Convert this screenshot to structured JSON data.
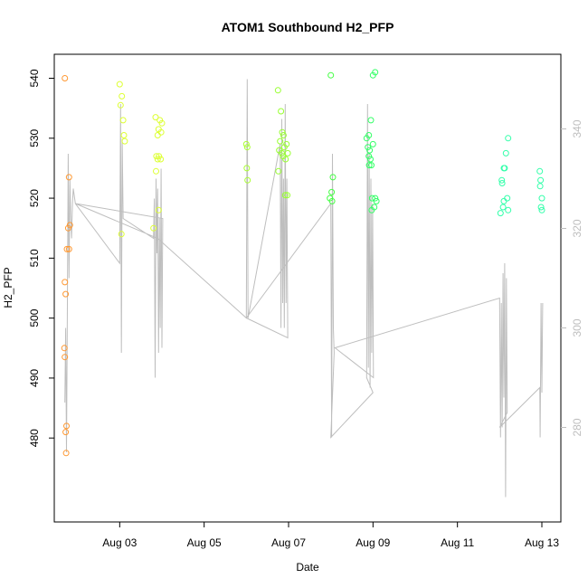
{
  "chart_data": {
    "type": "scatter",
    "title": "ATOM1 Southbound H2_PFP",
    "xlabel": "Date",
    "ylabel": "H2_PFP",
    "x_unit": "days in August",
    "xlim": [
      1.45,
      13.45
    ],
    "ylim": [
      466,
      544
    ],
    "y2lim": [
      261,
      355
    ],
    "x_ticks": [
      3,
      5,
      7,
      9,
      11,
      13
    ],
    "x_tick_labels": [
      "Aug 03",
      "Aug 05",
      "Aug 07",
      "Aug 09",
      "Aug 11",
      "Aug 13"
    ],
    "y_ticks": [
      480,
      490,
      500,
      510,
      520,
      530,
      540
    ],
    "y2_ticks": [
      280,
      300,
      320,
      340
    ],
    "points": [
      {
        "x": 1.7,
        "y": 540.0,
        "color": "#ff9933"
      },
      {
        "x": 1.8,
        "y": 523.5,
        "color": "#ff9933"
      },
      {
        "x": 1.82,
        "y": 515.5,
        "color": "#ff9933"
      },
      {
        "x": 1.78,
        "y": 515.0,
        "color": "#ff9933"
      },
      {
        "x": 1.75,
        "y": 511.5,
        "color": "#ff9933"
      },
      {
        "x": 1.8,
        "y": 511.5,
        "color": "#ff9933"
      },
      {
        "x": 1.7,
        "y": 506.0,
        "color": "#ff9933"
      },
      {
        "x": 1.72,
        "y": 504.0,
        "color": "#ff9933"
      },
      {
        "x": 1.69,
        "y": 495.0,
        "color": "#ff9933"
      },
      {
        "x": 1.7,
        "y": 493.5,
        "color": "#ff9933"
      },
      {
        "x": 1.74,
        "y": 482.0,
        "color": "#ff9933"
      },
      {
        "x": 1.72,
        "y": 481.0,
        "color": "#ff9933"
      },
      {
        "x": 1.73,
        "y": 477.5,
        "color": "#ff9933"
      },
      {
        "x": 3.0,
        "y": 539.0,
        "color": "#ddff33"
      },
      {
        "x": 3.05,
        "y": 537.0,
        "color": "#ddff33"
      },
      {
        "x": 3.02,
        "y": 535.5,
        "color": "#ddff33"
      },
      {
        "x": 3.08,
        "y": 533.0,
        "color": "#ddff33"
      },
      {
        "x": 3.1,
        "y": 530.5,
        "color": "#ddff33"
      },
      {
        "x": 3.12,
        "y": 529.5,
        "color": "#ddff33"
      },
      {
        "x": 3.04,
        "y": 514.0,
        "color": "#ddff33"
      },
      {
        "x": 3.85,
        "y": 533.5,
        "color": "#ddff33"
      },
      {
        "x": 3.95,
        "y": 533.0,
        "color": "#ddff33"
      },
      {
        "x": 4.0,
        "y": 532.5,
        "color": "#ddff33"
      },
      {
        "x": 3.92,
        "y": 531.5,
        "color": "#ddff33"
      },
      {
        "x": 3.98,
        "y": 531.0,
        "color": "#ddff33"
      },
      {
        "x": 3.9,
        "y": 530.5,
        "color": "#ddff33"
      },
      {
        "x": 3.87,
        "y": 527.0,
        "color": "#ddff33"
      },
      {
        "x": 3.93,
        "y": 527.0,
        "color": "#ddff33"
      },
      {
        "x": 3.97,
        "y": 526.5,
        "color": "#ddff33"
      },
      {
        "x": 3.9,
        "y": 526.5,
        "color": "#ddff33"
      },
      {
        "x": 3.86,
        "y": 524.5,
        "color": "#ddff33"
      },
      {
        "x": 3.92,
        "y": 518.0,
        "color": "#ddff33"
      },
      {
        "x": 3.8,
        "y": 515.0,
        "color": "#ddff33"
      },
      {
        "x": 6.0,
        "y": 529.0,
        "color": "#aaff33"
      },
      {
        "x": 6.02,
        "y": 528.5,
        "color": "#aaff33"
      },
      {
        "x": 6.01,
        "y": 525.0,
        "color": "#aaff33"
      },
      {
        "x": 6.03,
        "y": 523.0,
        "color": "#aaff33"
      },
      {
        "x": 6.75,
        "y": 538.0,
        "color": "#99ff33"
      },
      {
        "x": 6.82,
        "y": 534.5,
        "color": "#99ff33"
      },
      {
        "x": 6.85,
        "y": 531.0,
        "color": "#99ff33"
      },
      {
        "x": 6.88,
        "y": 530.5,
        "color": "#99ff33"
      },
      {
        "x": 6.8,
        "y": 529.5,
        "color": "#99ff33"
      },
      {
        "x": 6.95,
        "y": 529.0,
        "color": "#99ff33"
      },
      {
        "x": 6.78,
        "y": 528.0,
        "color": "#99ff33"
      },
      {
        "x": 6.9,
        "y": 528.5,
        "color": "#99ff33"
      },
      {
        "x": 6.84,
        "y": 527.5,
        "color": "#99ff33"
      },
      {
        "x": 6.98,
        "y": 527.5,
        "color": "#99ff33"
      },
      {
        "x": 6.87,
        "y": 527.0,
        "color": "#99ff33"
      },
      {
        "x": 6.93,
        "y": 526.5,
        "color": "#99ff33"
      },
      {
        "x": 6.76,
        "y": 524.5,
        "color": "#99ff33"
      },
      {
        "x": 6.92,
        "y": 520.5,
        "color": "#99ff33"
      },
      {
        "x": 6.97,
        "y": 520.5,
        "color": "#99ff33"
      },
      {
        "x": 8.0,
        "y": 540.5,
        "color": "#44ff44"
      },
      {
        "x": 8.05,
        "y": 523.5,
        "color": "#44ff44"
      },
      {
        "x": 8.02,
        "y": 521.0,
        "color": "#44ff44"
      },
      {
        "x": 7.98,
        "y": 520.0,
        "color": "#44ff44"
      },
      {
        "x": 8.03,
        "y": 519.5,
        "color": "#44ff44"
      },
      {
        "x": 9.05,
        "y": 541.0,
        "color": "#33ff66"
      },
      {
        "x": 9.0,
        "y": 540.5,
        "color": "#33ff66"
      },
      {
        "x": 8.95,
        "y": 533.0,
        "color": "#33ff66"
      },
      {
        "x": 8.9,
        "y": 530.5,
        "color": "#33ff66"
      },
      {
        "x": 8.85,
        "y": 530.0,
        "color": "#33ff66"
      },
      {
        "x": 9.0,
        "y": 529.0,
        "color": "#33ff66"
      },
      {
        "x": 8.88,
        "y": 528.5,
        "color": "#33ff66"
      },
      {
        "x": 8.92,
        "y": 528.0,
        "color": "#33ff66"
      },
      {
        "x": 8.9,
        "y": 527.0,
        "color": "#33ff66"
      },
      {
        "x": 8.94,
        "y": 526.5,
        "color": "#33ff66"
      },
      {
        "x": 8.91,
        "y": 525.5,
        "color": "#33ff66"
      },
      {
        "x": 8.96,
        "y": 525.5,
        "color": "#33ff66"
      },
      {
        "x": 8.98,
        "y": 520.0,
        "color": "#33ff66"
      },
      {
        "x": 9.05,
        "y": 520.0,
        "color": "#33ff66"
      },
      {
        "x": 9.08,
        "y": 519.5,
        "color": "#33ff66"
      },
      {
        "x": 9.03,
        "y": 518.5,
        "color": "#33ff66"
      },
      {
        "x": 8.97,
        "y": 518.0,
        "color": "#33ff66"
      },
      {
        "x": 12.2,
        "y": 530.0,
        "color": "#33ffaa"
      },
      {
        "x": 12.15,
        "y": 527.5,
        "color": "#33ffaa"
      },
      {
        "x": 12.1,
        "y": 525.0,
        "color": "#33ffaa"
      },
      {
        "x": 12.12,
        "y": 525.0,
        "color": "#33ffaa"
      },
      {
        "x": 12.05,
        "y": 523.0,
        "color": "#33ffaa"
      },
      {
        "x": 12.06,
        "y": 522.5,
        "color": "#33ffaa"
      },
      {
        "x": 12.18,
        "y": 520.0,
        "color": "#33ffaa"
      },
      {
        "x": 12.1,
        "y": 519.5,
        "color": "#33ffaa"
      },
      {
        "x": 12.08,
        "y": 518.5,
        "color": "#33ffaa"
      },
      {
        "x": 12.2,
        "y": 518.0,
        "color": "#33ffaa"
      },
      {
        "x": 12.02,
        "y": 517.5,
        "color": "#33ffaa"
      },
      {
        "x": 12.95,
        "y": 524.5,
        "color": "#33ffaa"
      },
      {
        "x": 12.97,
        "y": 523.0,
        "color": "#33ffaa"
      },
      {
        "x": 12.96,
        "y": 522.0,
        "color": "#33ffaa"
      },
      {
        "x": 13.0,
        "y": 520.0,
        "color": "#33ffaa"
      },
      {
        "x": 12.98,
        "y": 518.5,
        "color": "#33ffaa"
      },
      {
        "x": 13.0,
        "y": 518.0,
        "color": "#33ffaa"
      }
    ],
    "secondary_line": {
      "axis": "right",
      "color": "#bebebe",
      "points": [
        [
          1.7,
          285
        ],
        [
          1.72,
          300
        ],
        [
          1.74,
          275
        ],
        [
          1.76,
          305
        ],
        [
          1.78,
          335
        ],
        [
          1.8,
          310
        ],
        [
          1.82,
          330
        ],
        [
          1.84,
          322
        ],
        [
          1.86,
          318
        ],
        [
          1.88,
          325
        ],
        [
          1.9,
          328
        ],
        [
          1.95,
          325
        ],
        [
          3.0,
          313
        ],
        [
          3.02,
          345
        ],
        [
          3.04,
          295
        ],
        [
          3.06,
          338
        ],
        [
          3.08,
          322
        ],
        [
          3.8,
          318
        ],
        [
          3.82,
          326
        ],
        [
          3.84,
          290
        ],
        [
          3.86,
          330
        ],
        [
          3.88,
          315
        ],
        [
          3.9,
          328
        ],
        [
          3.92,
          295
        ],
        [
          3.94,
          322
        ],
        [
          3.96,
          300
        ],
        [
          3.98,
          332
        ],
        [
          4.0,
          296
        ],
        [
          4.02,
          322
        ],
        [
          1.95,
          325
        ],
        [
          3.9,
          318
        ],
        [
          6.0,
          302
        ],
        [
          6.02,
          350
        ],
        [
          6.04,
          302
        ],
        [
          6.8,
          337
        ],
        [
          6.82,
          300
        ],
        [
          6.84,
          342
        ],
        [
          6.86,
          305
        ],
        [
          6.88,
          330
        ],
        [
          6.9,
          300
        ],
        [
          6.92,
          345
        ],
        [
          6.94,
          305
        ],
        [
          6.96,
          330
        ],
        [
          6.98,
          298
        ],
        [
          6.0,
          302
        ],
        [
          8.0,
          325
        ],
        [
          8.02,
          278
        ],
        [
          8.04,
          335
        ],
        [
          8.06,
          300
        ],
        [
          8.08,
          295
        ],
        [
          8.0,
          278
        ],
        [
          9.0,
          287
        ],
        [
          8.85,
          290
        ],
        [
          8.87,
          345
        ],
        [
          8.89,
          292
        ],
        [
          8.91,
          335
        ],
        [
          8.93,
          288
        ],
        [
          8.95,
          330
        ],
        [
          8.97,
          295
        ],
        [
          8.99,
          325
        ],
        [
          9.01,
          290
        ],
        [
          8.1,
          296
        ],
        [
          12.0,
          306
        ],
        [
          12.02,
          278
        ],
        [
          12.04,
          305
        ],
        [
          12.06,
          280
        ],
        [
          12.08,
          311
        ],
        [
          12.1,
          286
        ],
        [
          12.12,
          313
        ],
        [
          12.14,
          266
        ],
        [
          12.16,
          310
        ],
        [
          12.18,
          283
        ],
        [
          12.0,
          280
        ],
        [
          12.95,
          288
        ],
        [
          12.96,
          278
        ],
        [
          12.98,
          305
        ],
        [
          13.0,
          287
        ],
        [
          13.02,
          305
        ]
      ]
    }
  }
}
